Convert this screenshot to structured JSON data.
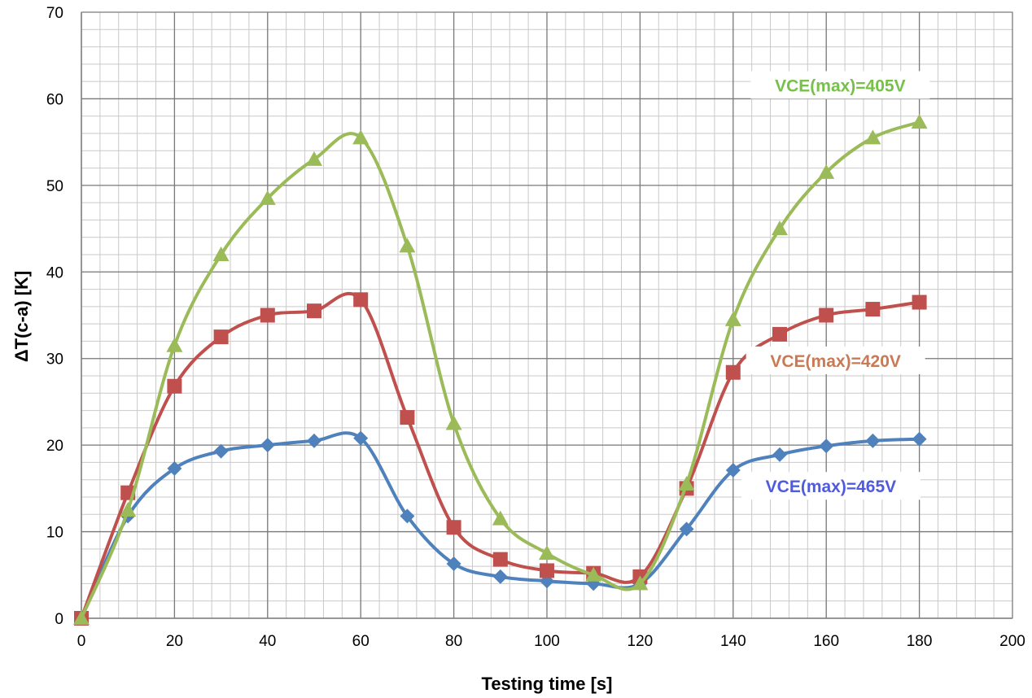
{
  "chart_data": {
    "type": "line",
    "xlabel": "Testing time [s]",
    "ylabel": "ΔT(c-a) [K]",
    "xlim": [
      0,
      200
    ],
    "ylim": [
      0,
      70
    ],
    "x_ticks": [
      0,
      20,
      40,
      60,
      80,
      100,
      120,
      140,
      160,
      180,
      200
    ],
    "y_ticks": [
      0,
      10,
      20,
      30,
      40,
      50,
      60,
      70
    ],
    "grid": true,
    "x": [
      0,
      10,
      20,
      30,
      40,
      50,
      60,
      70,
      80,
      90,
      100,
      110,
      120,
      130,
      140,
      150,
      160,
      170,
      180
    ],
    "series": [
      {
        "name": "VCE(max)=405V",
        "color": "#9bbb59",
        "marker": "triangle",
        "label_color": "#77c04a",
        "values": [
          0,
          12.5,
          31.5,
          42,
          48.5,
          53,
          55.5,
          43,
          22.5,
          11.5,
          7.5,
          5,
          4,
          15.5,
          34.5,
          45,
          51.5,
          55.5,
          57.3
        ]
      },
      {
        "name": "VCE(max)=420V",
        "color": "#c0504d",
        "marker": "square",
        "label_color": "#c97a55",
        "values": [
          0,
          14.5,
          26.8,
          32.5,
          35,
          35.5,
          36.8,
          23.2,
          10.5,
          6.8,
          5.5,
          5.2,
          4.8,
          15,
          28.4,
          32.8,
          35,
          35.7,
          36.5
        ]
      },
      {
        "name": "VCE(max)=465V",
        "color": "#4f81bd",
        "marker": "diamond",
        "label_color": "#4f5ae0",
        "values": [
          0,
          11.8,
          17.3,
          19.3,
          20,
          20.5,
          20.8,
          11.8,
          6.3,
          4.8,
          4.3,
          4,
          4,
          10.3,
          17.1,
          18.9,
          19.9,
          20.5,
          20.7
        ]
      }
    ]
  }
}
